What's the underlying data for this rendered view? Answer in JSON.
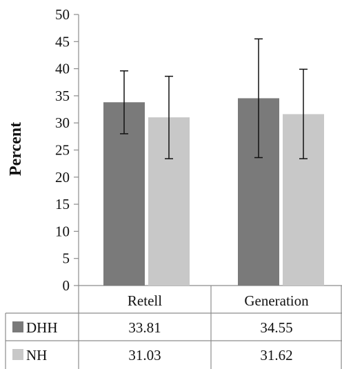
{
  "chart_data": {
    "type": "bar",
    "title": "",
    "xlabel": "",
    "ylabel": "Percent",
    "ylim": [
      0,
      50
    ],
    "yticks": [
      0,
      5,
      10,
      15,
      20,
      25,
      30,
      35,
      40,
      45,
      50
    ],
    "categories": [
      "Retell",
      "Generation"
    ],
    "series": [
      {
        "name": "DHH",
        "values": [
          33.81,
          34.55
        ],
        "labels": [
          "33.81",
          "34.55"
        ],
        "error_low": [
          28.0,
          23.6
        ],
        "error_high": [
          39.6,
          45.5
        ],
        "color": "#7a7a7a"
      },
      {
        "name": "NH",
        "values": [
          31.03,
          31.62
        ],
        "labels": [
          "31.03",
          "31.62"
        ],
        "error_low": [
          23.4,
          23.4
        ],
        "error_high": [
          38.6,
          39.9
        ],
        "color": "#c8c8c8"
      }
    ],
    "grid": false,
    "legend": "data-table"
  }
}
